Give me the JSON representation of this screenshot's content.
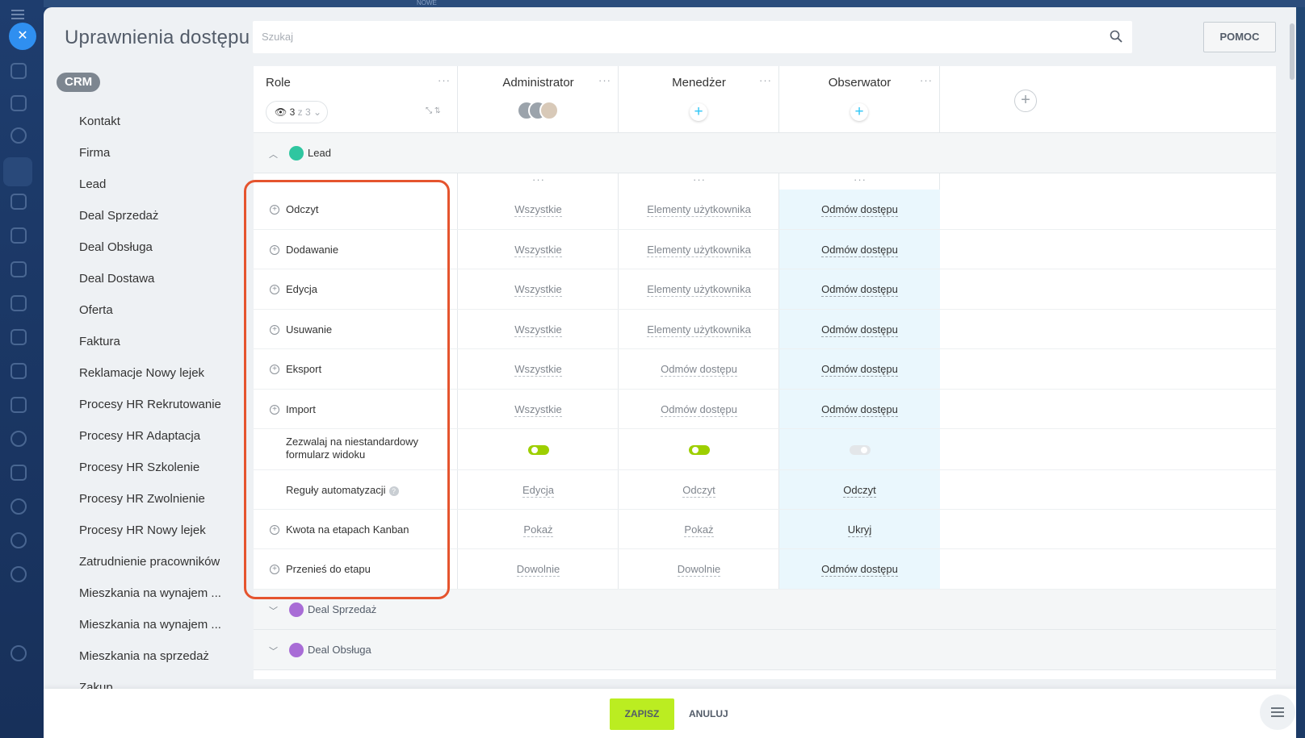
{
  "topstrip": {
    "label": "NOWE"
  },
  "page_title": "Uprawnienia dostępu",
  "search": {
    "placeholder": "Szukaj"
  },
  "help_button": "POMOC",
  "crm_chip": "CRM",
  "menu_items": [
    "Kontakt",
    "Firma",
    "Lead",
    "Deal Sprzedaż",
    "Deal Obsługa",
    "Deal Dostawa",
    "Oferta",
    "Faktura",
    "Reklamacje Nowy lejek",
    "Procesy HR Rekrutowanie",
    "Procesy HR Adaptacja",
    "Procesy HR Szkolenie",
    "Procesy HR Zwolnienie",
    "Procesy HR Nowy lejek",
    "Zatrudnienie pracowników",
    "Mieszkania na wynajem ...",
    "Mieszkania na wynajem ...",
    "Mieszkania na sprzedaż",
    "Zakup"
  ],
  "header": {
    "role_label": "Role",
    "counter_current": "3",
    "counter_total": "z 3",
    "columns": [
      "Administrator",
      "Menedżer",
      "Obserwator"
    ]
  },
  "sections": {
    "lead": "Lead",
    "deal_sprzedaz": "Deal Sprzedaż",
    "deal_obsluga": "Deal Obsługa"
  },
  "rows": [
    {
      "label": "Odczyt",
      "values": [
        "Wszystkie",
        "Elementy użytkownika",
        "Odmów dostępu"
      ]
    },
    {
      "label": "Dodawanie",
      "values": [
        "Wszystkie",
        "Elementy użytkownika",
        "Odmów dostępu"
      ]
    },
    {
      "label": "Edycja",
      "values": [
        "Wszystkie",
        "Elementy użytkownika",
        "Odmów dostępu"
      ]
    },
    {
      "label": "Usuwanie",
      "values": [
        "Wszystkie",
        "Elementy użytkownika",
        "Odmów dostępu"
      ]
    },
    {
      "label": "Eksport",
      "values": [
        "Wszystkie",
        "Odmów dostępu",
        "Odmów dostępu"
      ]
    },
    {
      "label": "Import",
      "values": [
        "Wszystkie",
        "Odmów dostępu",
        "Odmów dostępu"
      ]
    },
    {
      "label_line1": "Zezwalaj na niestandardowy",
      "label_line2": "formularz widoku",
      "toggles": [
        true,
        true,
        false
      ]
    },
    {
      "label": "Reguły automatyzacji",
      "values": [
        "Edycja",
        "Odczyt",
        "Odczyt"
      ]
    },
    {
      "label": "Kwota na etapach Kanban",
      "values": [
        "Pokaż",
        "Pokaż",
        "Ukryj"
      ]
    },
    {
      "label": "Przenieś do etapu",
      "values": [
        "Dowolnie",
        "Dowolnie",
        "Odmów dostępu"
      ]
    }
  ],
  "footer": {
    "save": "ZAPISZ",
    "cancel": "ANULUJ"
  },
  "colors": {
    "accent_save": "#bbed21",
    "highlight": "#e5542e",
    "plus_blue": "#2fc6f6",
    "toggle_on": "#9dcf00"
  }
}
